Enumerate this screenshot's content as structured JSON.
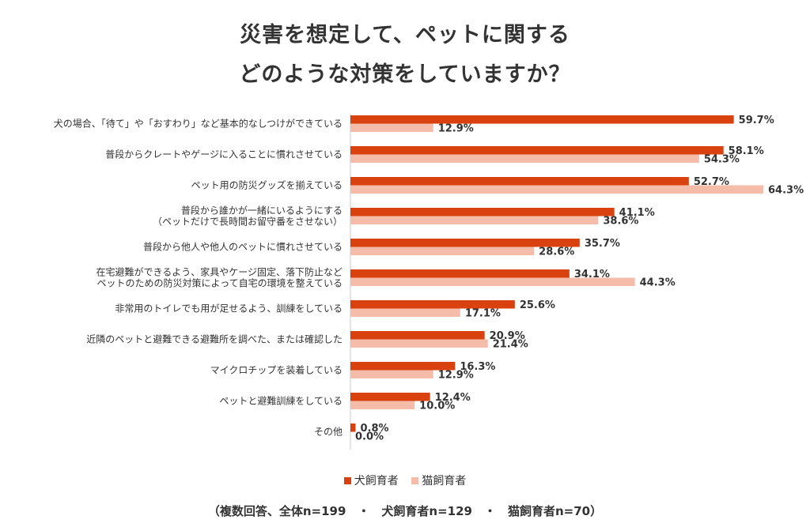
{
  "title_line1": "災害を想定して、ペットに関する",
  "title_line2": "どのような対策をしていますか？",
  "footnote": "（複数回答、全体n=199　・　犬飼育者n=129　・　猫飼育者n=70）",
  "colors": {
    "dog": "#d9410f",
    "cat": "#f5bda9",
    "axis": "#c8c8c8"
  },
  "chart_data": {
    "type": "bar",
    "orientation": "horizontal",
    "categories": [
      [
        "犬の場合、「待て」や「おすわり」など基本的なしつけができている"
      ],
      [
        "普段からクレートやゲージに入ることに慣れさせている"
      ],
      [
        "ペット用の防災グッズを揃えている"
      ],
      [
        "普段から誰かが一緒にいるようにする",
        "（ペットだけで長時間お留守番をさせない）"
      ],
      [
        "普段から他人や他人のペットに慣れさせている"
      ],
      [
        "在宅避難ができるよう、家具やケージ固定、落下防止など",
        "ペットのための防災対策によって自宅の環境を整えている"
      ],
      [
        "非常用のトイレでも用が足せるよう、訓練をしている"
      ],
      [
        "近隣のペットと避難できる避難所を調べた、または確認した"
      ],
      [
        "マイクロチップを装着している"
      ],
      [
        "ペットと避難訓練をしている"
      ],
      [
        "その他"
      ]
    ],
    "series": [
      {
        "name": "犬飼育者",
        "values": [
          59.7,
          58.1,
          52.7,
          41.1,
          35.7,
          34.1,
          25.6,
          20.9,
          16.3,
          12.4,
          0.8
        ]
      },
      {
        "name": "猫飼育者",
        "values": [
          12.9,
          54.3,
          64.3,
          38.6,
          28.6,
          44.3,
          17.1,
          21.4,
          12.9,
          10.0,
          0.0
        ]
      }
    ],
    "value_suffix": "%",
    "xlim": [
      0,
      64.3
    ],
    "legend_position": "bottom",
    "grid": false
  }
}
